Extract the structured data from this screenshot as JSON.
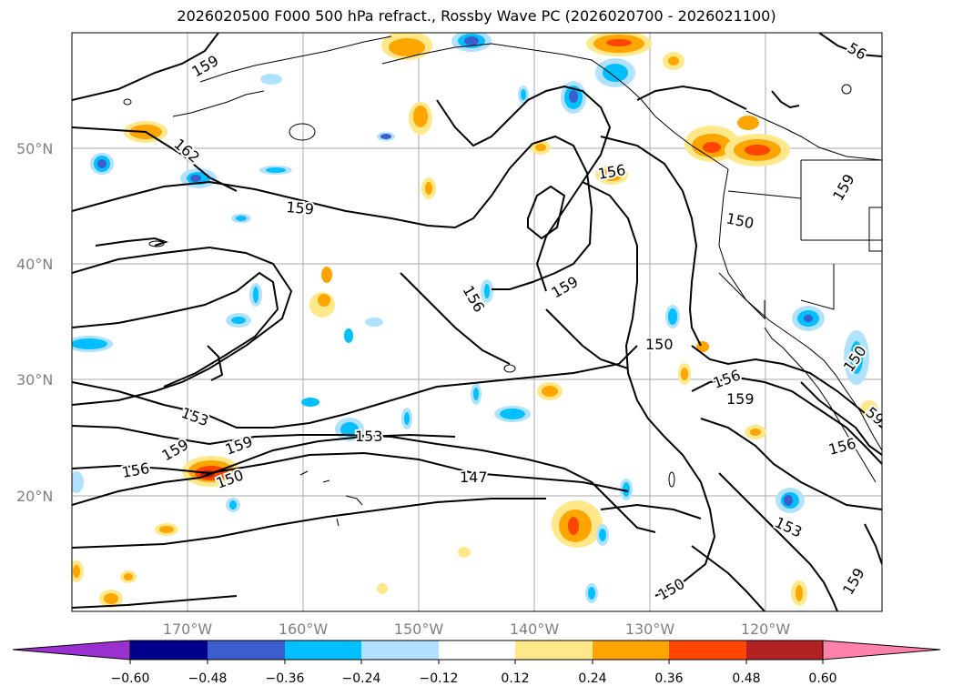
{
  "title": "2026020500 F000 500 hPa refract., Rossby Wave PC (2026020700 - 2026021100)",
  "map": {
    "lat_labels": [
      "50°N",
      "40°N",
      "30°N",
      "20°N"
    ],
    "lon_labels": [
      "170°W",
      "160°W",
      "150°W",
      "140°W",
      "130°W",
      "120°W"
    ],
    "contour_labels": [
      "159",
      "162",
      "159",
      "156",
      "150",
      "159",
      "156",
      "159",
      "150",
      "153",
      "159",
      "159",
      "156",
      "150",
      "153",
      "147",
      "156",
      "159",
      "156",
      "153",
      "150",
      "59",
      "150",
      "159",
      "159",
      "56"
    ]
  },
  "colorbar": {
    "ticks": [
      "−0.60",
      "−0.48",
      "−0.36",
      "−0.24",
      "−0.12",
      "0.12",
      "0.24",
      "0.36",
      "0.48",
      "0.60"
    ],
    "colors": [
      "#9b30d0",
      "#00008b",
      "#3a5fcd",
      "#00bfff",
      "#b0e2ff",
      "#ffffff",
      "#ffe88a",
      "#ffa500",
      "#ff4500",
      "#b22222",
      "#ff82ab"
    ]
  }
}
